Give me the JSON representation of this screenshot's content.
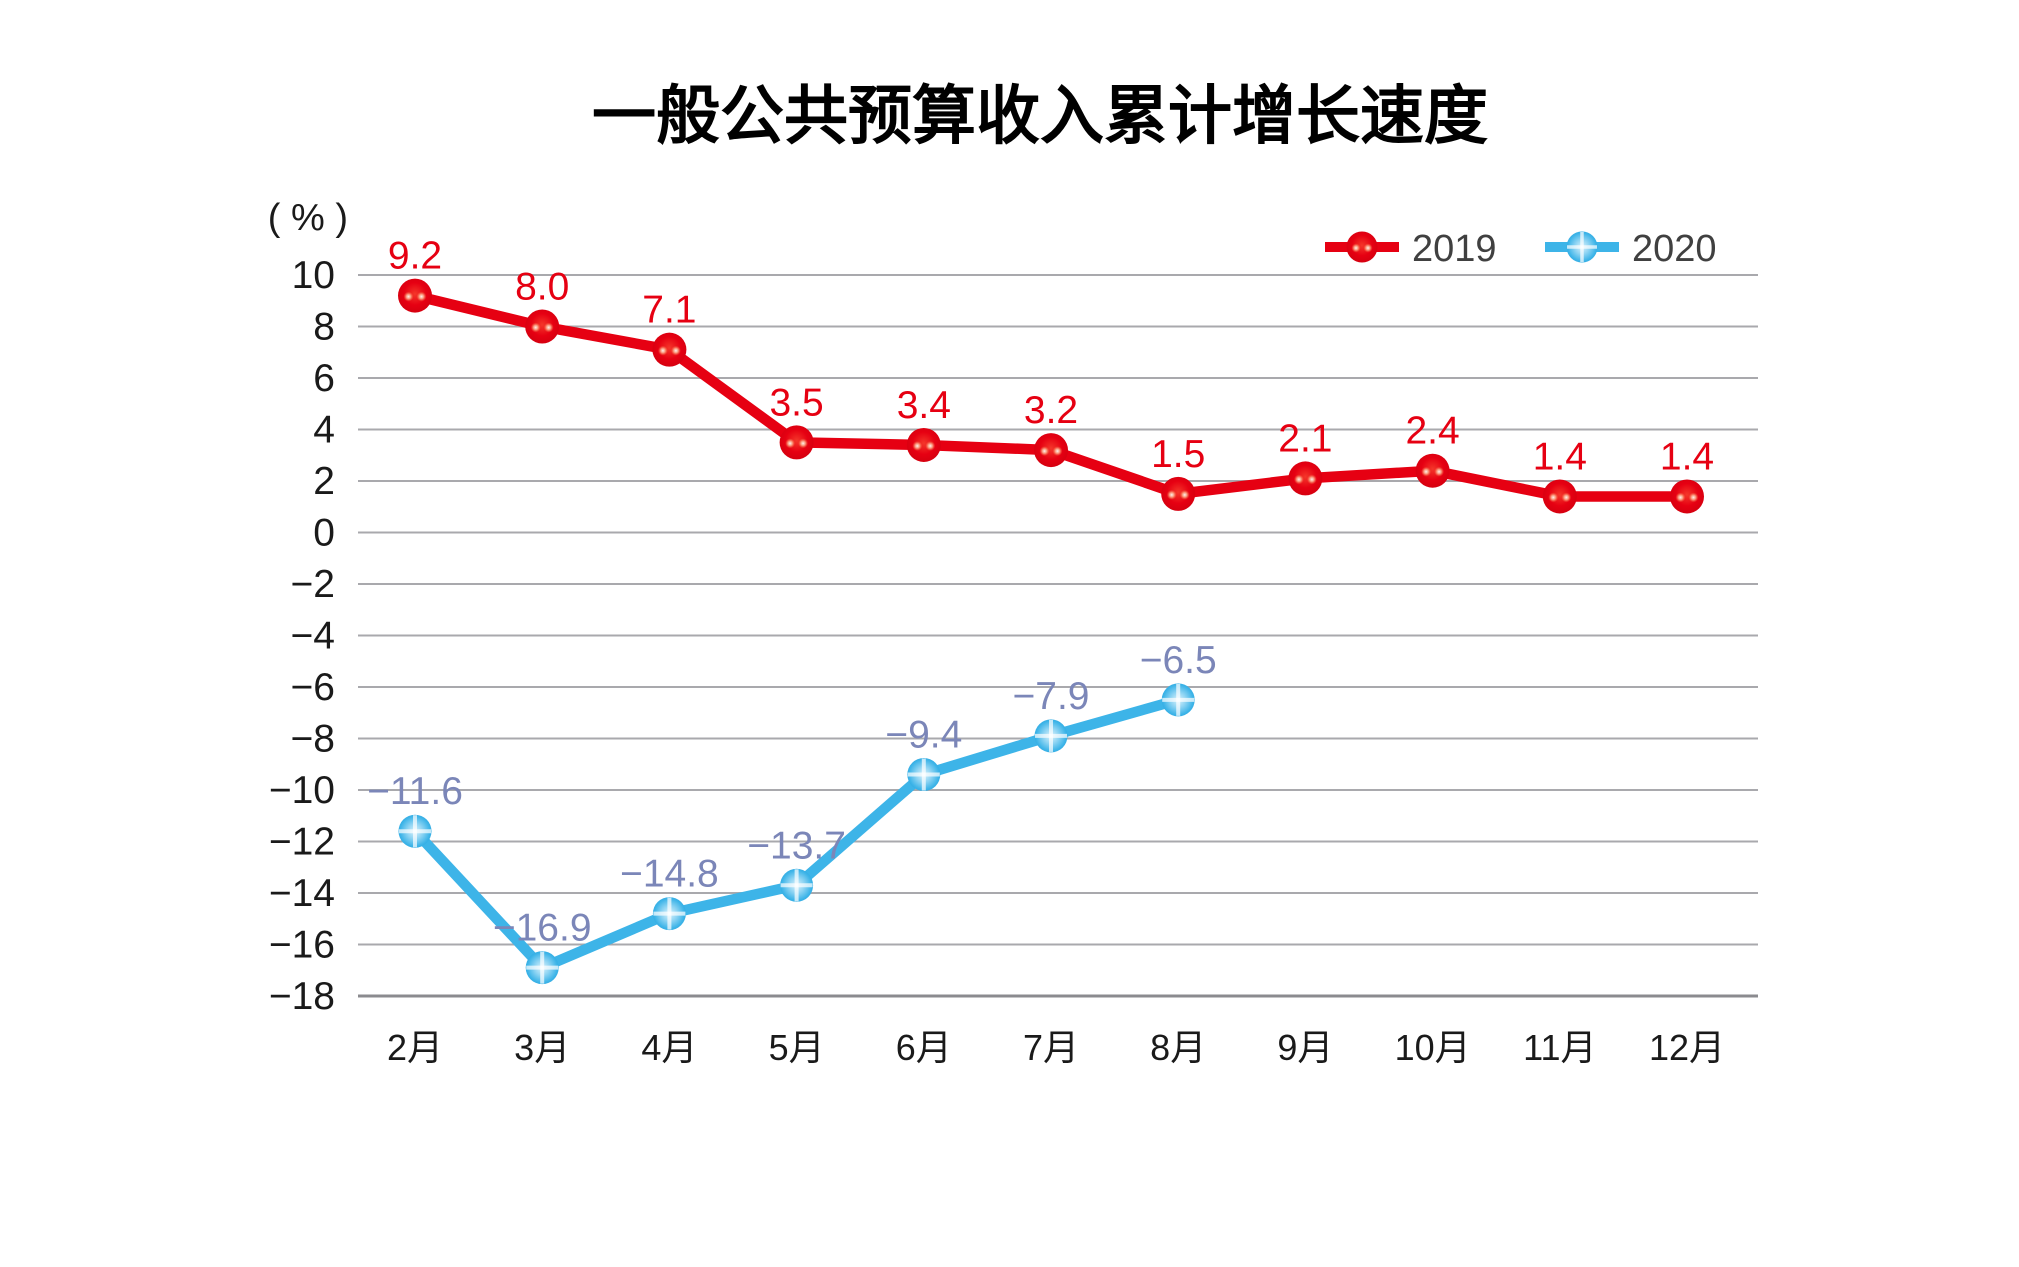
{
  "title": "一般公共预算收入累计增长速度",
  "y_axis": {
    "unit_label": "( % )",
    "max": 10,
    "min": -18,
    "step": 2,
    "tick_labels": [
      "10",
      "8",
      "6",
      "4",
      "2",
      "0",
      "−2",
      "−4",
      "−6",
      "−8",
      "−10",
      "−12",
      "−14",
      "−16",
      "−18"
    ]
  },
  "x_axis": {
    "categories": [
      "2月",
      "3月",
      "4月",
      "5月",
      "6月",
      "7月",
      "8月",
      "9月",
      "10月",
      "11月",
      "12月"
    ]
  },
  "legend": [
    {
      "label": "2019",
      "color": "#e60012"
    },
    {
      "label": "2020",
      "color": "#3db4e8"
    }
  ],
  "colors": {
    "series_2019": "#e60012",
    "series_2020": "#3db4e8",
    "label_2019": "#e60012",
    "label_2020": "#7b86b8",
    "gridline": "#a9a9ad",
    "bottom_line": "#8b8b8f",
    "axis_text": "#1a1a1a",
    "legend_text": "#404040",
    "background": "#ffffff"
  },
  "chart_data": {
    "type": "line",
    "title": "一般公共预算收入累计增长速度",
    "categories": [
      "2月",
      "3月",
      "4月",
      "5月",
      "6月",
      "7月",
      "8月",
      "9月",
      "10月",
      "11月",
      "12月"
    ],
    "series": [
      {
        "name": "2019",
        "color": "#e60012",
        "values": [
          9.2,
          8.0,
          7.1,
          3.5,
          3.4,
          3.2,
          1.5,
          2.1,
          2.4,
          1.4,
          1.4
        ],
        "labels": [
          "9.2",
          "8.0",
          "7.1",
          "3.5",
          "3.4",
          "3.2",
          "1.5",
          "2.1",
          "2.4",
          "1.4",
          "1.4"
        ]
      },
      {
        "name": "2020",
        "color": "#3db4e8",
        "values": [
          -11.6,
          -16.9,
          -14.8,
          -13.7,
          -9.4,
          -7.9,
          -6.5
        ],
        "labels": [
          "−11.6",
          "−16.9",
          "−14.8",
          "−13.7",
          "−9.4",
          "−7.9",
          "−6.5"
        ]
      }
    ],
    "ylim": [
      -18,
      10
    ],
    "ylabel": "( % )",
    "grid": true,
    "legend_position": "top-right"
  }
}
